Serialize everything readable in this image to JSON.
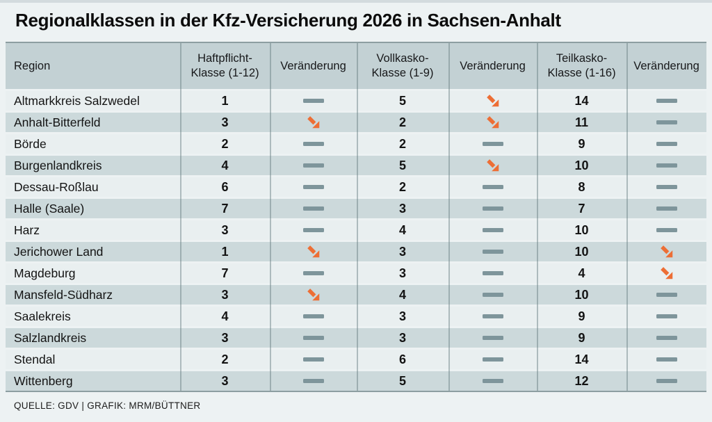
{
  "title": "Regionalklassen in der Kfz-Versicherung 2026 in Sachsen-Anhalt",
  "source": "QUELLE: GDV | GRAFIK: MRM/BÜTTNER",
  "colors": {
    "arrow_orange": "#ed6e35",
    "dash_gray": "#7e959b",
    "header_bg": "#c3d1d4",
    "row_light": "#e9eff0",
    "row_dark": "#ccd9db",
    "page_bg": "#edf2f3"
  },
  "chart_data": {
    "type": "table",
    "title": "Regionalklassen in der Kfz-Versicherung 2026 in Sachsen-Anhalt",
    "columns": [
      "Region",
      "Haftpflicht-\nKlasse (1-12)",
      "Veränderung",
      "Vollkasko-\nKlasse (1-9)",
      "Veränderung",
      "Teilkasko-\nKlasse (1-16)",
      "Veränderung"
    ],
    "change_encoding": {
      "same": "gray horizontal dash = unverändert",
      "down": "orange arrow pointing down-right = Klasse gesunken"
    },
    "rows": [
      {
        "region": "Altmarkkreis Salzwedel",
        "haftpflicht_klasse": 1,
        "haftpflicht_veraenderung": "same",
        "vollkasko_klasse": 5,
        "vollkasko_veraenderung": "down",
        "teilkasko_klasse": 14,
        "teilkasko_veraenderung": "same"
      },
      {
        "region": "Anhalt-Bitterfeld",
        "haftpflicht_klasse": 3,
        "haftpflicht_veraenderung": "down",
        "vollkasko_klasse": 2,
        "vollkasko_veraenderung": "down",
        "teilkasko_klasse": 11,
        "teilkasko_veraenderung": "same"
      },
      {
        "region": "Börde",
        "haftpflicht_klasse": 2,
        "haftpflicht_veraenderung": "same",
        "vollkasko_klasse": 2,
        "vollkasko_veraenderung": "same",
        "teilkasko_klasse": 9,
        "teilkasko_veraenderung": "same"
      },
      {
        "region": "Burgenlandkreis",
        "haftpflicht_klasse": 4,
        "haftpflicht_veraenderung": "same",
        "vollkasko_klasse": 5,
        "vollkasko_veraenderung": "down",
        "teilkasko_klasse": 10,
        "teilkasko_veraenderung": "same"
      },
      {
        "region": "Dessau-Roßlau",
        "haftpflicht_klasse": 6,
        "haftpflicht_veraenderung": "same",
        "vollkasko_klasse": 2,
        "vollkasko_veraenderung": "same",
        "teilkasko_klasse": 8,
        "teilkasko_veraenderung": "same"
      },
      {
        "region": "Halle (Saale)",
        "haftpflicht_klasse": 7,
        "haftpflicht_veraenderung": "same",
        "vollkasko_klasse": 3,
        "vollkasko_veraenderung": "same",
        "teilkasko_klasse": 7,
        "teilkasko_veraenderung": "same"
      },
      {
        "region": "Harz",
        "haftpflicht_klasse": 3,
        "haftpflicht_veraenderung": "same",
        "vollkasko_klasse": 4,
        "vollkasko_veraenderung": "same",
        "teilkasko_klasse": 10,
        "teilkasko_veraenderung": "same"
      },
      {
        "region": "Jerichower Land",
        "haftpflicht_klasse": 1,
        "haftpflicht_veraenderung": "down",
        "vollkasko_klasse": 3,
        "vollkasko_veraenderung": "same",
        "teilkasko_klasse": 10,
        "teilkasko_veraenderung": "down"
      },
      {
        "region": "Magdeburg",
        "haftpflicht_klasse": 7,
        "haftpflicht_veraenderung": "same",
        "vollkasko_klasse": 3,
        "vollkasko_veraenderung": "same",
        "teilkasko_klasse": 4,
        "teilkasko_veraenderung": "down"
      },
      {
        "region": "Mansfeld-Südharz",
        "haftpflicht_klasse": 3,
        "haftpflicht_veraenderung": "down",
        "vollkasko_klasse": 4,
        "vollkasko_veraenderung": "same",
        "teilkasko_klasse": 10,
        "teilkasko_veraenderung": "same"
      },
      {
        "region": "Saalekreis",
        "haftpflicht_klasse": 4,
        "haftpflicht_veraenderung": "same",
        "vollkasko_klasse": 3,
        "vollkasko_veraenderung": "same",
        "teilkasko_klasse": 9,
        "teilkasko_veraenderung": "same"
      },
      {
        "region": "Salzlandkreis",
        "haftpflicht_klasse": 3,
        "haftpflicht_veraenderung": "same",
        "vollkasko_klasse": 3,
        "vollkasko_veraenderung": "same",
        "teilkasko_klasse": 9,
        "teilkasko_veraenderung": "same"
      },
      {
        "region": "Stendal",
        "haftpflicht_klasse": 2,
        "haftpflicht_veraenderung": "same",
        "vollkasko_klasse": 6,
        "vollkasko_veraenderung": "same",
        "teilkasko_klasse": 14,
        "teilkasko_veraenderung": "same"
      },
      {
        "region": "Wittenberg",
        "haftpflicht_klasse": 3,
        "haftpflicht_veraenderung": "same",
        "vollkasko_klasse": 5,
        "vollkasko_veraenderung": "same",
        "teilkasko_klasse": 12,
        "teilkasko_veraenderung": "same"
      }
    ]
  }
}
